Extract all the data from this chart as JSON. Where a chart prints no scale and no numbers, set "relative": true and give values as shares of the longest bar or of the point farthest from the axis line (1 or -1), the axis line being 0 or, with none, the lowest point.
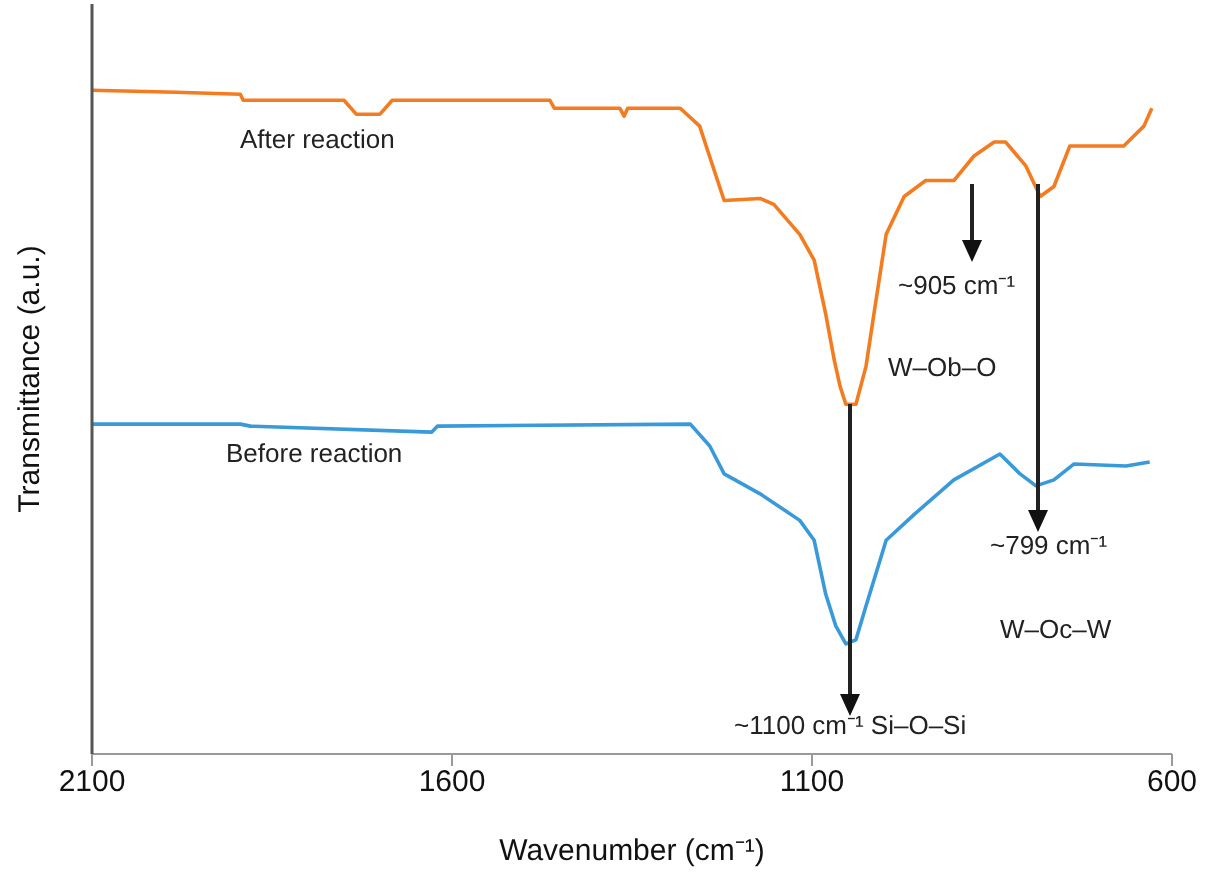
{
  "chart_data": {
    "type": "line",
    "xlabel": "Wavenumber (cm⁻¹)",
    "ylabel": "Transmittance (a.u.)",
    "relative": true,
    "xlim": [
      2100,
      600
    ],
    "xticks": [
      2100,
      1600,
      1100,
      600
    ],
    "grid": false,
    "legend": false,
    "marker": "none",
    "line_style": "solid",
    "annotations": [
      "~905 cm⁻¹",
      "W–Ob–O",
      "~799 cm⁻¹",
      "W–Oc–W",
      "~1100 cm⁻¹  Si–O–Si"
    ],
    "series": [
      {
        "name": "After reaction",
        "color": "#f47c20",
        "x": [
          2100,
          1983,
          1894,
          1890,
          1750,
          1733,
          1700,
          1683,
          1464,
          1458,
          1367,
          1361,
          1356,
          1283,
          1256,
          1247,
          1222,
          1172,
          1153,
          1117,
          1097,
          1081,
          1069,
          1061,
          1053,
          1039,
          1025,
          1014,
          997,
          972,
          942,
          903,
          875,
          847,
          831,
          803,
          783,
          764,
          742,
          667,
          653,
          639,
          628
        ],
        "values": [
          1.0,
          0.997,
          0.994,
          0.985,
          0.985,
          0.964,
          0.964,
          0.985,
          0.985,
          0.973,
          0.973,
          0.961,
          0.973,
          0.973,
          0.946,
          0.916,
          0.834,
          0.837,
          0.828,
          0.783,
          0.744,
          0.663,
          0.593,
          0.554,
          0.527,
          0.527,
          0.584,
          0.663,
          0.783,
          0.84,
          0.864,
          0.864,
          0.901,
          0.922,
          0.922,
          0.886,
          0.84,
          0.855,
          0.916,
          0.916,
          0.931,
          0.946,
          0.973
        ]
      },
      {
        "name": "Before reaction",
        "color": "#3a9ad9",
        "x": [
          2100,
          1983,
          1894,
          1880,
          1628,
          1620,
          1269,
          1242,
          1222,
          1172,
          1117,
          1097,
          1081,
          1067,
          1053,
          1039,
          1025,
          997,
          958,
          903,
          839,
          811,
          789,
          764,
          736,
          664,
          631
        ],
        "values": [
          0.497,
          0.497,
          0.497,
          0.494,
          0.485,
          0.494,
          0.497,
          0.464,
          0.422,
          0.392,
          0.352,
          0.322,
          0.241,
          0.193,
          0.166,
          0.172,
          0.223,
          0.322,
          0.361,
          0.413,
          0.452,
          0.422,
          0.404,
          0.413,
          0.437,
          0.434,
          0.44
        ]
      }
    ]
  }
}
